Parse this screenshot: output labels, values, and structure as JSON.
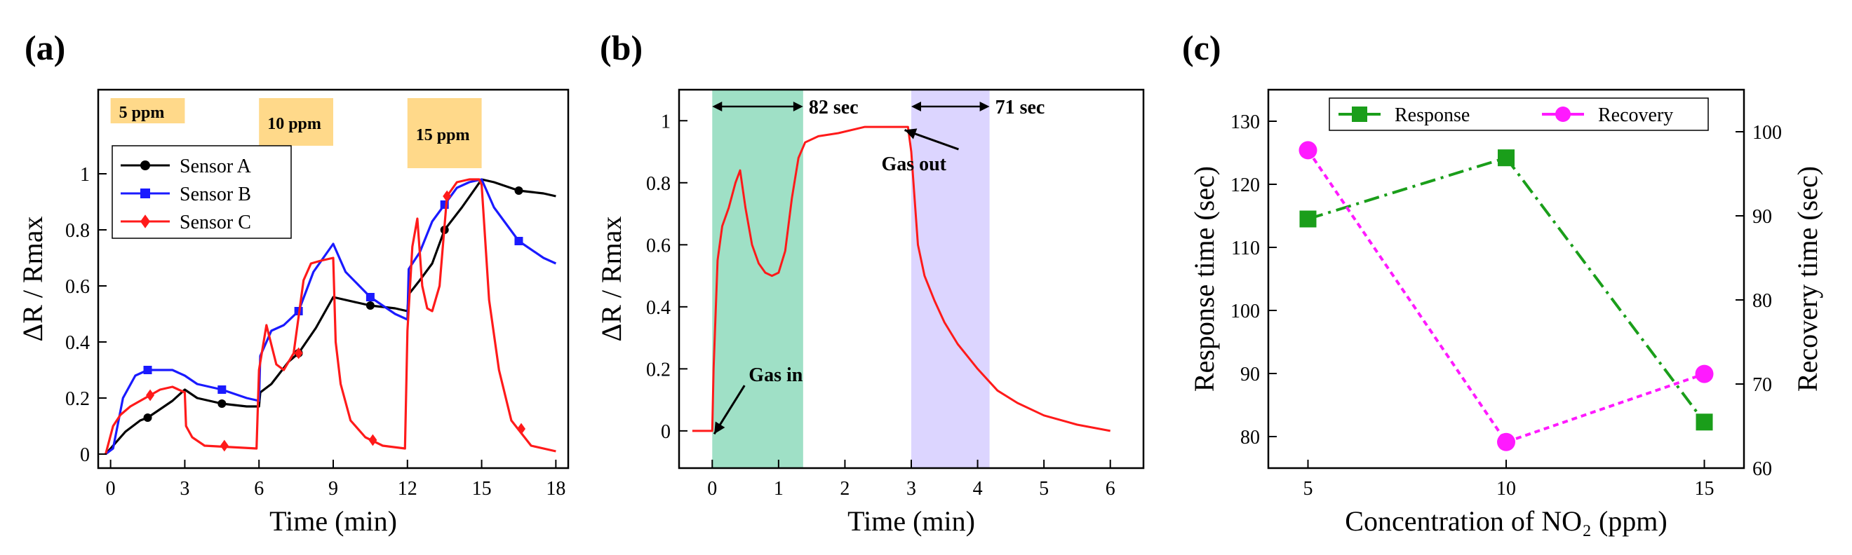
{
  "chart_data": [
    {
      "panel": "(a)",
      "type": "line",
      "xlabel": "Time (min)",
      "ylabel": "ΔR / Rmax",
      "xlim": [
        -0.5,
        18.5
      ],
      "ylim": [
        -0.05,
        1.3
      ],
      "xticks": [
        0,
        3,
        6,
        9,
        12,
        15,
        18
      ],
      "yticks": [
        0,
        0.2,
        0.4,
        0.6,
        0.8,
        1
      ],
      "ytick_labels": [
        "0",
        "0.2",
        "0.4",
        "0.6",
        "0.8",
        "1"
      ],
      "grid": false,
      "legend": "upper-left",
      "bands": [
        {
          "label": "5 ppm",
          "x0": 0,
          "x1": 3,
          "y0": 1.18,
          "y1": 1.27,
          "color": "#ffd98a"
        },
        {
          "label": "10 ppm",
          "x0": 6,
          "x1": 9,
          "y0": 1.1,
          "y1": 1.27,
          "color": "#ffd98a"
        },
        {
          "label": "15 ppm",
          "x0": 12,
          "x1": 15,
          "y0": 1.02,
          "y1": 1.27,
          "color": "#ffd98a"
        }
      ],
      "series": [
        {
          "name": "Sensor A",
          "color": "#000000",
          "marker": "circle",
          "x": [
            -0.2,
            0.1,
            0.6,
            1.2,
            1.5,
            2.0,
            2.5,
            3.0,
            3.5,
            4.5,
            5.5,
            6.0,
            6.05,
            6.5,
            7.2,
            7.6,
            8.3,
            9.0,
            10.0,
            10.5,
            11.5,
            12.0,
            12.05,
            12.5,
            13.0,
            13.5,
            14.2,
            15.0,
            15.5,
            16.5,
            17.5,
            18.0
          ],
          "y": [
            0.0,
            0.03,
            0.08,
            0.12,
            0.13,
            0.16,
            0.19,
            0.23,
            0.2,
            0.18,
            0.17,
            0.17,
            0.22,
            0.25,
            0.33,
            0.36,
            0.45,
            0.56,
            0.54,
            0.53,
            0.52,
            0.51,
            0.57,
            0.62,
            0.68,
            0.8,
            0.88,
            0.98,
            0.97,
            0.94,
            0.93,
            0.92
          ],
          "marker_x": [
            1.5,
            4.5,
            7.6,
            10.5,
            13.5,
            16.5
          ],
          "marker_y": [
            0.13,
            0.18,
            0.36,
            0.53,
            0.8,
            0.94
          ]
        },
        {
          "name": "Sensor B",
          "color": "#1a1aff",
          "marker": "square",
          "x": [
            -0.2,
            0.1,
            0.5,
            1.0,
            1.5,
            2.0,
            2.5,
            3.0,
            3.5,
            4.5,
            5.5,
            6.0,
            6.05,
            6.5,
            7.0,
            7.6,
            8.2,
            9.0,
            9.5,
            10.5,
            11.5,
            12.0,
            12.05,
            12.5,
            13.0,
            13.5,
            14.0,
            14.5,
            15.0,
            15.5,
            16.5,
            17.5,
            18.0
          ],
          "y": [
            0.0,
            0.02,
            0.2,
            0.28,
            0.3,
            0.3,
            0.3,
            0.28,
            0.25,
            0.23,
            0.2,
            0.19,
            0.35,
            0.44,
            0.46,
            0.51,
            0.65,
            0.75,
            0.65,
            0.56,
            0.5,
            0.48,
            0.66,
            0.72,
            0.83,
            0.89,
            0.95,
            0.97,
            0.98,
            0.88,
            0.76,
            0.7,
            0.68
          ],
          "marker_x": [
            1.5,
            4.5,
            7.6,
            10.5,
            13.5,
            16.5
          ],
          "marker_y": [
            0.3,
            0.23,
            0.51,
            0.56,
            0.89,
            0.76
          ]
        },
        {
          "name": "Sensor C",
          "color": "#ff1a1a",
          "marker": "diamond",
          "x": [
            -0.2,
            0.1,
            0.4,
            0.8,
            1.2,
            1.6,
            2.0,
            2.5,
            3.0,
            3.05,
            3.3,
            3.8,
            5.9,
            6.0,
            6.3,
            6.7,
            7.0,
            7.4,
            7.8,
            8.1,
            8.5,
            9.0,
            9.1,
            9.3,
            9.7,
            10.3,
            11.0,
            11.9,
            12.0,
            12.2,
            12.4,
            12.6,
            12.8,
            13.0,
            13.3,
            13.6,
            14.0,
            14.5,
            14.9,
            15.0,
            15.3,
            15.7,
            16.2,
            17.0,
            18.0
          ],
          "y": [
            0.0,
            0.1,
            0.14,
            0.17,
            0.19,
            0.21,
            0.23,
            0.24,
            0.22,
            0.1,
            0.06,
            0.03,
            0.02,
            0.3,
            0.46,
            0.32,
            0.3,
            0.36,
            0.62,
            0.68,
            0.69,
            0.7,
            0.4,
            0.25,
            0.12,
            0.06,
            0.03,
            0.02,
            0.44,
            0.74,
            0.84,
            0.6,
            0.52,
            0.51,
            0.6,
            0.92,
            0.97,
            0.98,
            0.98,
            0.96,
            0.55,
            0.3,
            0.12,
            0.03,
            0.01
          ],
          "marker_x": [
            1.6,
            4.6,
            7.6,
            10.6,
            13.6,
            16.6
          ],
          "marker_y": [
            0.21,
            0.03,
            0.36,
            0.05,
            0.92,
            0.09
          ]
        }
      ]
    },
    {
      "panel": "(b)",
      "type": "line",
      "xlabel": "Time (min)",
      "ylabel": "ΔR / Rmax",
      "xlim": [
        -0.5,
        6.5
      ],
      "ylim": [
        -0.12,
        1.1
      ],
      "xticks": [
        0,
        1,
        2,
        3,
        4,
        5,
        6
      ],
      "yticks": [
        0,
        0.2,
        0.4,
        0.6,
        0.8,
        1
      ],
      "ytick_labels": [
        "0",
        "0.2",
        "0.4",
        "0.6",
        "0.8",
        "1"
      ],
      "grid": false,
      "bands": [
        {
          "label": "82 sec",
          "x0": 0,
          "x1": 1.37,
          "color": "#9fe0c6"
        },
        {
          "label": "71 sec",
          "x0": 3,
          "x1": 4.18,
          "color": "#dcd5ff"
        }
      ],
      "annotations": [
        {
          "text": "Gas in",
          "x": 0.55,
          "y": 0.16,
          "arrow_to": [
            0.03,
            -0.01
          ]
        },
        {
          "text": "Gas out",
          "x": 2.55,
          "y": 0.84,
          "arrow_to": [
            2.9,
            0.97
          ]
        }
      ],
      "series": [
        {
          "name": "",
          "color": "#ff1a1a",
          "x": [
            -0.3,
            -0.1,
            0.0,
            0.02,
            0.08,
            0.15,
            0.25,
            0.35,
            0.42,
            0.5,
            0.6,
            0.7,
            0.8,
            0.9,
            1.0,
            1.1,
            1.2,
            1.3,
            1.4,
            1.6,
            1.9,
            2.3,
            2.7,
            2.95,
            3.0,
            3.05,
            3.1,
            3.2,
            3.35,
            3.5,
            3.7,
            4.0,
            4.3,
            4.6,
            5.0,
            5.5,
            6.0
          ],
          "y": [
            0.0,
            0.0,
            0.0,
            0.2,
            0.55,
            0.66,
            0.72,
            0.8,
            0.84,
            0.72,
            0.6,
            0.54,
            0.51,
            0.5,
            0.51,
            0.58,
            0.75,
            0.88,
            0.93,
            0.95,
            0.96,
            0.98,
            0.98,
            0.98,
            0.9,
            0.75,
            0.6,
            0.5,
            0.42,
            0.35,
            0.28,
            0.2,
            0.13,
            0.09,
            0.05,
            0.02,
            0.0
          ]
        }
      ]
    },
    {
      "panel": "(c)",
      "type": "line",
      "xlabel": "Concentration of NO₂ (ppm)",
      "ylabel": "Response time (sec)",
      "ylabel_right": "Recovery time (sec)",
      "xlim": [
        4,
        16
      ],
      "ylim": [
        75,
        135
      ],
      "ylim_right": [
        60,
        105
      ],
      "xticks": [
        5,
        10,
        15
      ],
      "yticks": [
        80,
        90,
        100,
        110,
        120,
        130
      ],
      "yticks_right": [
        60,
        70,
        80,
        90,
        100
      ],
      "grid": false,
      "legend": "top",
      "series": [
        {
          "name": "Response",
          "color": "#1a9e1a",
          "marker": "square",
          "axis": "left",
          "x": [
            5,
            10,
            15
          ],
          "y": [
            114.5,
            124.2,
            82.3
          ]
        },
        {
          "name": "Recovery",
          "color": "#ff1aff",
          "marker": "circle",
          "axis": "right",
          "x": [
            5,
            10,
            15
          ],
          "y": [
            97.8,
            63.1,
            71.2
          ]
        }
      ]
    }
  ]
}
